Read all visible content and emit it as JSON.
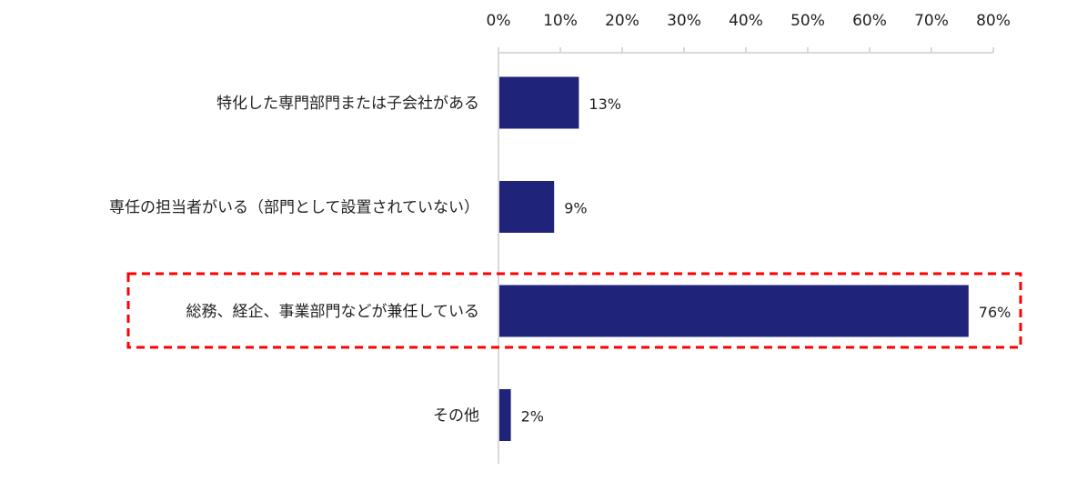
{
  "chart_data": {
    "type": "bar",
    "orientation": "horizontal",
    "categories": [
      "特化した専門部門または子会社がある",
      "専任の担当者がいる（部門として設置されていない）",
      "総務、経企、事業部門などが兼任している",
      "その他"
    ],
    "values": [
      13,
      9,
      76,
      2
    ],
    "data_labels": [
      "13%",
      "9%",
      "76%",
      "2%"
    ],
    "xlim": [
      0,
      80
    ],
    "xticks": [
      0,
      10,
      20,
      30,
      40,
      50,
      60,
      70,
      80
    ],
    "xtick_labels": [
      "0%",
      "10%",
      "20%",
      "30%",
      "40%",
      "50%",
      "60%",
      "70%",
      "80%"
    ],
    "axis_position": "top",
    "grid": false,
    "title": "",
    "xlabel": "",
    "ylabel": "",
    "highlighted_category_index": 2,
    "colors": {
      "bar": "#1f237a",
      "highlight_box": "#ff0000",
      "axis": "#d9d9d9"
    }
  }
}
